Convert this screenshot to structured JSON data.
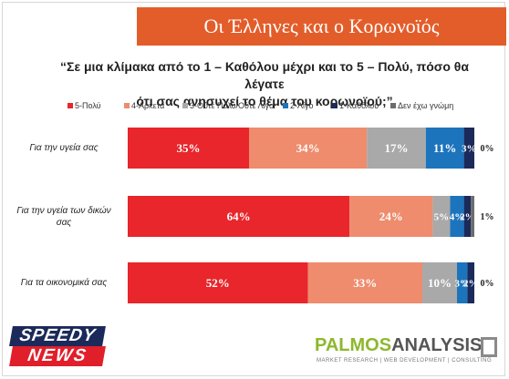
{
  "header": {
    "title": "Οι Έλληνες και ο Κορωνοϊός"
  },
  "question": {
    "line1": "“Σε μια κλίμακα από το 1 – Καθόλου μέχρι και το 5 – Πολύ, πόσο θα λέγατε",
    "line2": "ότι σας ανησυχεί το θέμα του κορωνοϊού;”"
  },
  "chart_data": {
    "type": "bar",
    "orientation": "horizontal",
    "stacked": true,
    "categories": [
      "Για την υγεία σας",
      "Για την υγεία των δικών σας",
      "Για τα οικονομικά σας"
    ],
    "category_lines": [
      [
        "Για την υγεία σας"
      ],
      [
        "Για την υγεία των δικών",
        "σας"
      ],
      [
        "Για τα οικονομικά σας"
      ]
    ],
    "xlim": [
      0,
      100
    ],
    "legend_position": "top",
    "grid": false,
    "series": [
      {
        "name": "5-Πολύ",
        "color": "#e8262b",
        "values": [
          35,
          64,
          52
        ],
        "labels": [
          "35%",
          "64%",
          "52%"
        ]
      },
      {
        "name": "4-Αρκετά",
        "color": "#ee8c6d",
        "values": [
          34,
          24,
          33
        ],
        "labels": [
          "34%",
          "24%",
          "33%"
        ]
      },
      {
        "name": "3-Ούτε Πολύ/Ούτε Λίγο",
        "color": "#a9a9a9",
        "values": [
          17,
          5,
          10
        ],
        "labels": [
          "17%",
          "5%",
          "10%"
        ]
      },
      {
        "name": "2-Λίγο",
        "color": "#1c74bc",
        "values": [
          11,
          4,
          3
        ],
        "labels": [
          "11%",
          "4%",
          "3%"
        ]
      },
      {
        "name": "1-Καθόλου",
        "color": "#1b2a5a",
        "values": [
          3,
          2,
          2
        ],
        "labels": [
          "3%",
          "2%",
          "2%"
        ]
      },
      {
        "name": "Δεν έχω γνώμη",
        "color": "#6d6d6d",
        "values": [
          0,
          1,
          0
        ],
        "labels": [
          "0%",
          "1%",
          "0%"
        ]
      }
    ]
  },
  "brands": {
    "left_top": "SPEEDY",
    "left_bottom": "NEWS",
    "right_a": "PALMOS",
    "right_b": "ANALYSIS",
    "right_tagline": "MARKET RESEARCH | WEB DEVELOPMENT | CONSULTING"
  }
}
